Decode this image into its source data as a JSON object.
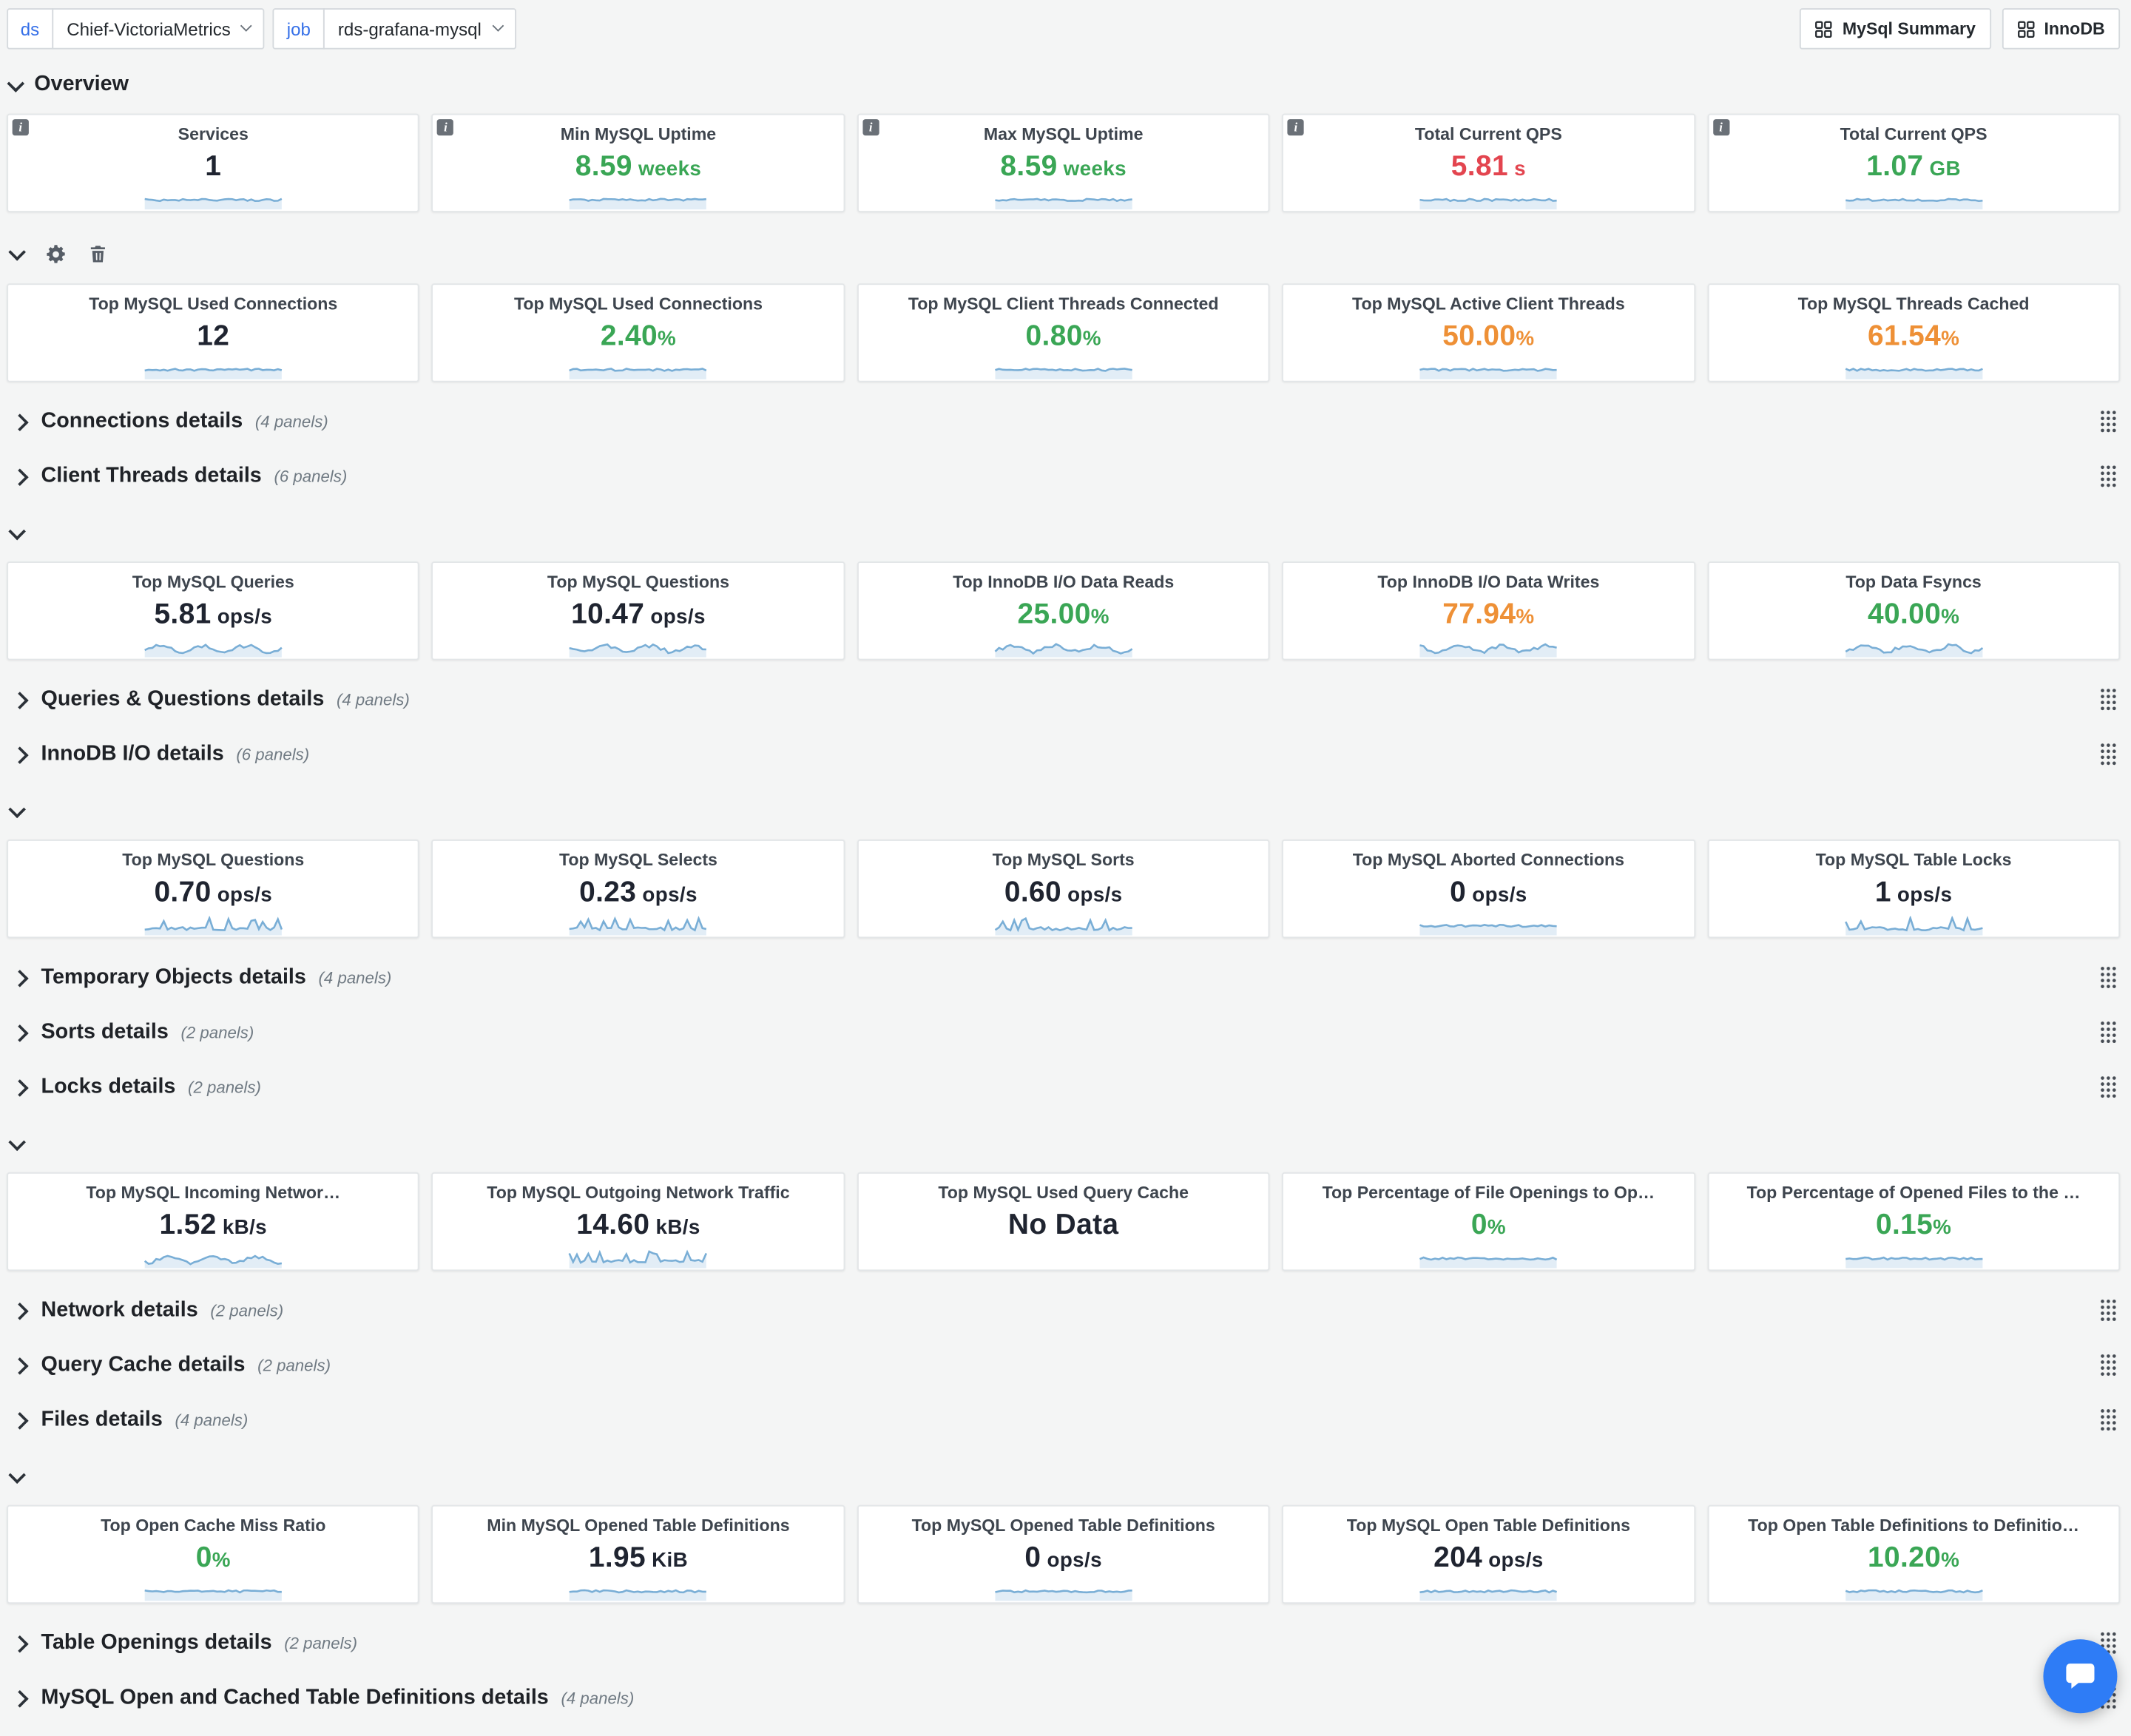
{
  "colors": {
    "page_bg": "#f4f5f5",
    "accent_blue": "#3670e8",
    "green": "#3aa655",
    "orange": "#ee9036",
    "red": "#e3454f",
    "value_dark": "#1f2430",
    "spark_line": "#79aed6",
    "spark_fill": "rgba(121,174,214,0.22)",
    "chat_bubble": "#2e7cf6"
  },
  "topbar": {
    "variables": [
      {
        "label": "ds",
        "value": "Chief-VictoriaMetrics"
      },
      {
        "label": "job",
        "value": "rds-grafana-mysql"
      }
    ],
    "links": [
      {
        "label": "MySql Summary"
      },
      {
        "label": "InnoDB"
      }
    ]
  },
  "sections": [
    {
      "type": "row-header",
      "title": "Overview"
    },
    {
      "type": "panels",
      "info": true,
      "panels": [
        {
          "title": "Services",
          "value": "1",
          "unit": "",
          "color": "dark",
          "spark": "flat"
        },
        {
          "title": "Min MySQL Uptime",
          "value": "8.59",
          "unit": " weeks",
          "color": "green",
          "spark": "flat"
        },
        {
          "title": "Max MySQL Uptime",
          "value": "8.59",
          "unit": " weeks",
          "color": "green",
          "spark": "flat"
        },
        {
          "title": "Total Current QPS",
          "value": "5.81",
          "unit": " s",
          "color": "red",
          "spark": "flat"
        },
        {
          "title": "Total Current QPS",
          "value": "1.07",
          "unit": " GB",
          "color": "green",
          "spark": "flat"
        }
      ]
    },
    {
      "type": "row-tools"
    },
    {
      "type": "panels",
      "info": false,
      "panels": [
        {
          "title": "Top MySQL Used Connections",
          "value": "12",
          "unit": "",
          "color": "dark",
          "spark": "flat"
        },
        {
          "title": "Top MySQL Used Connections",
          "value": "2.40",
          "unit": "%",
          "color": "green",
          "spark": "flat"
        },
        {
          "title": "Top MySQL Client Threads Connected",
          "value": "0.80",
          "unit": "%",
          "color": "green",
          "spark": "flat"
        },
        {
          "title": "Top MySQL Active Client Threads",
          "value": "50.00",
          "unit": "%",
          "color": "orange",
          "spark": "flat"
        },
        {
          "title": "Top MySQL Threads Cached",
          "value": "61.54",
          "unit": "%",
          "color": "orange",
          "spark": "flat"
        }
      ]
    },
    {
      "type": "collapsed-row",
      "title": "Connections details",
      "count": "(4 panels)"
    },
    {
      "type": "collapsed-row",
      "title": "Client Threads details",
      "count": "(6 panels)"
    },
    {
      "type": "expander"
    },
    {
      "type": "panels",
      "info": false,
      "panels": [
        {
          "title": "Top MySQL Queries",
          "value": "5.81",
          "unit": " ops/s",
          "color": "dark",
          "spark": "wavy"
        },
        {
          "title": "Top MySQL Questions",
          "value": "10.47",
          "unit": " ops/s",
          "color": "dark",
          "spark": "wavy"
        },
        {
          "title": "Top InnoDB I/O Data Reads",
          "value": "25.00",
          "unit": "%",
          "color": "green",
          "spark": "wavy"
        },
        {
          "title": "Top InnoDB I/O Data Writes",
          "value": "77.94",
          "unit": "%",
          "color": "orange",
          "spark": "wavy"
        },
        {
          "title": "Top Data Fsyncs",
          "value": "40.00",
          "unit": "%",
          "color": "green",
          "spark": "wavy"
        }
      ]
    },
    {
      "type": "collapsed-row",
      "title": "Queries & Questions details",
      "count": "(4 panels)"
    },
    {
      "type": "collapsed-row",
      "title": "InnoDB I/O details",
      "count": "(6 panels)"
    },
    {
      "type": "expander"
    },
    {
      "type": "panels",
      "info": false,
      "panels": [
        {
          "title": "Top MySQL Questions",
          "value": "0.70",
          "unit": " ops/s",
          "color": "dark",
          "spark": "spiky"
        },
        {
          "title": "Top MySQL Selects",
          "value": "0.23",
          "unit": " ops/s",
          "color": "dark",
          "spark": "spiky"
        },
        {
          "title": "Top MySQL Sorts",
          "value": "0.60",
          "unit": " ops/s",
          "color": "dark",
          "spark": "spiky"
        },
        {
          "title": "Top MySQL Aborted Connections",
          "value": "0",
          "unit": " ops/s",
          "color": "dark",
          "spark": "flat"
        },
        {
          "title": "Top MySQL Table Locks",
          "value": "1",
          "unit": " ops/s",
          "color": "dark",
          "spark": "spiky"
        }
      ]
    },
    {
      "type": "collapsed-row",
      "title": "Temporary Objects details",
      "count": "(4 panels)"
    },
    {
      "type": "collapsed-row",
      "title": "Sorts details",
      "count": "(2 panels)"
    },
    {
      "type": "collapsed-row",
      "title": "Locks details",
      "count": "(2 panels)"
    },
    {
      "type": "expander"
    },
    {
      "type": "panels",
      "info": false,
      "panels": [
        {
          "title": "Top MySQL Incoming Networ…",
          "value": "1.52",
          "unit": " kB/s",
          "color": "dark",
          "spark": "wavy"
        },
        {
          "title": "Top MySQL Outgoing Network Traffic",
          "value": "14.60",
          "unit": " kB/s",
          "color": "dark",
          "spark": "spiky"
        },
        {
          "title": "Top MySQL Used Query Cache",
          "value": "No Data",
          "unit": "",
          "color": "dark",
          "spark": "none"
        },
        {
          "title": "Top Percentage of File Openings to Op…",
          "value": "0",
          "unit": "%",
          "color": "green",
          "spark": "flat"
        },
        {
          "title": "Top Percentage of Opened Files to the …",
          "value": "0.15",
          "unit": "%",
          "color": "green",
          "spark": "flat"
        }
      ]
    },
    {
      "type": "collapsed-row",
      "title": "Network details",
      "count": "(2 panels)"
    },
    {
      "type": "collapsed-row",
      "title": "Query Cache details",
      "count": "(2 panels)"
    },
    {
      "type": "collapsed-row",
      "title": "Files details",
      "count": "(4 panels)"
    },
    {
      "type": "expander"
    },
    {
      "type": "panels",
      "info": false,
      "panels": [
        {
          "title": "Top Open Cache Miss Ratio",
          "value": "0",
          "unit": "%",
          "color": "green",
          "spark": "flat"
        },
        {
          "title": "Min MySQL Opened Table Definitions",
          "value": "1.95",
          "unit": " KiB",
          "color": "dark",
          "spark": "flat"
        },
        {
          "title": "Top MySQL Opened Table Definitions",
          "value": "0",
          "unit": " ops/s",
          "color": "dark",
          "spark": "flat"
        },
        {
          "title": "Top MySQL Open Table Definitions",
          "value": "204",
          "unit": " ops/s",
          "color": "dark",
          "spark": "flat"
        },
        {
          "title": "Top Open Table Definitions to Definitio…",
          "value": "10.20",
          "unit": "%",
          "color": "green",
          "spark": "flat"
        }
      ]
    },
    {
      "type": "collapsed-row",
      "title": "Table Openings details",
      "count": "(2 panels)"
    },
    {
      "type": "collapsed-row",
      "title": "MySQL Open and Cached Table Definitions details",
      "count": "(4 panels)"
    }
  ]
}
